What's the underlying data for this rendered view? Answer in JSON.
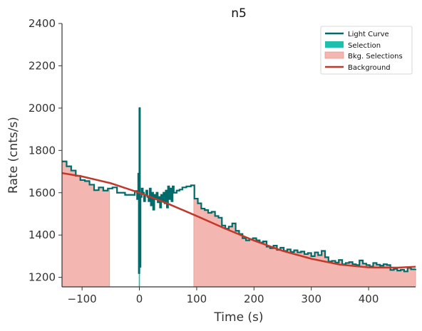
{
  "chart_data": {
    "type": "line",
    "title": "n5",
    "xlabel": "Time (s)",
    "ylabel": "Rate (cnts/s)",
    "xlim": [
      -135,
      482
    ],
    "ylim": [
      1155,
      2400
    ],
    "xticks": [
      -100,
      0,
      100,
      200,
      300,
      400
    ],
    "xtick_labels": [
      "−100",
      "0",
      "100",
      "200",
      "300",
      "400"
    ],
    "yticks": [
      1200,
      1400,
      1600,
      1800,
      2000,
      2200,
      2400
    ],
    "ytick_labels": [
      "1200",
      "1400",
      "1600",
      "1800",
      "2000",
      "2200",
      "2400"
    ],
    "grid": false,
    "legend_position": "top-right",
    "colors": {
      "light_curve": "#006b6b",
      "selection": "#1fbfb0",
      "bkg_selection": "#f4b6b0",
      "background": "#c0392b"
    },
    "legend": [
      {
        "label": "Light Curve",
        "kind": "line",
        "color": "#006b6b"
      },
      {
        "label": "Selection",
        "kind": "patch",
        "color": "#1fbfb0"
      },
      {
        "label": "Bkg. Selections",
        "kind": "patch",
        "color": "#f4b6b0"
      },
      {
        "label": "Background",
        "kind": "line",
        "color": "#c0392b"
      }
    ],
    "bkg_selections": [
      [
        -135,
        -52
      ],
      [
        95,
        482
      ]
    ],
    "selection": [
      -1,
      1
    ],
    "background": {
      "x": [
        -135,
        -100,
        -50,
        0,
        50,
        100,
        150,
        200,
        250,
        300,
        350,
        400,
        450,
        482
      ],
      "y": [
        1693,
        1677,
        1645,
        1600,
        1548,
        1490,
        1430,
        1374,
        1325,
        1288,
        1260,
        1247,
        1246,
        1250
      ]
    },
    "light_curve": {
      "x": [
        -135,
        -127,
        -119,
        -111,
        -103,
        -95,
        -87,
        -79,
        -71,
        -63,
        -55,
        -47,
        -39,
        -25,
        -8,
        -4,
        -2,
        -1,
        0,
        1,
        2,
        4,
        6,
        8,
        10,
        12,
        14,
        16,
        18,
        20,
        22,
        24,
        26,
        28,
        30,
        32,
        34,
        36,
        38,
        40,
        42,
        44,
        46,
        48,
        50,
        52,
        54,
        56,
        58,
        60,
        65,
        70,
        75,
        82,
        90,
        96,
        102,
        108,
        114,
        120,
        126,
        132,
        138,
        144,
        150,
        156,
        162,
        168,
        174,
        180,
        186,
        192,
        198,
        204,
        210,
        216,
        222,
        228,
        234,
        240,
        246,
        252,
        258,
        264,
        270,
        276,
        282,
        288,
        294,
        300,
        306,
        312,
        318,
        324,
        330,
        336,
        342,
        348,
        354,
        360,
        366,
        372,
        378,
        384,
        390,
        396,
        402,
        408,
        414,
        420,
        426,
        432,
        438,
        444,
        450,
        456,
        462,
        468,
        474,
        482
      ],
      "y": [
        1748,
        1725,
        1705,
        1680,
        1660,
        1655,
        1638,
        1612,
        1625,
        1610,
        1620,
        1625,
        1600,
        1590,
        1608,
        1570,
        1690,
        1220,
        2000,
        1250,
        1580,
        1620,
        1600,
        1560,
        1590,
        1610,
        1580,
        1560,
        1620,
        1540,
        1600,
        1520,
        1590,
        1570,
        1600,
        1555,
        1580,
        1530,
        1590,
        1560,
        1600,
        1550,
        1610,
        1530,
        1630,
        1570,
        1620,
        1560,
        1630,
        1600,
        1610,
        1615,
        1625,
        1630,
        1635,
        1572,
        1550,
        1525,
        1518,
        1505,
        1510,
        1490,
        1482,
        1445,
        1430,
        1440,
        1455,
        1420,
        1405,
        1385,
        1375,
        1380,
        1385,
        1375,
        1365,
        1370,
        1345,
        1338,
        1350,
        1330,
        1340,
        1325,
        1332,
        1320,
        1328,
        1318,
        1322,
        1310,
        1315,
        1300,
        1318,
        1305,
        1325,
        1295,
        1275,
        1278,
        1270,
        1282,
        1262,
        1268,
        1272,
        1262,
        1258,
        1280,
        1265,
        1258,
        1252,
        1268,
        1260,
        1255,
        1262,
        1258,
        1235,
        1240,
        1232,
        1236,
        1228,
        1245,
        1238,
        1240
      ]
    }
  }
}
